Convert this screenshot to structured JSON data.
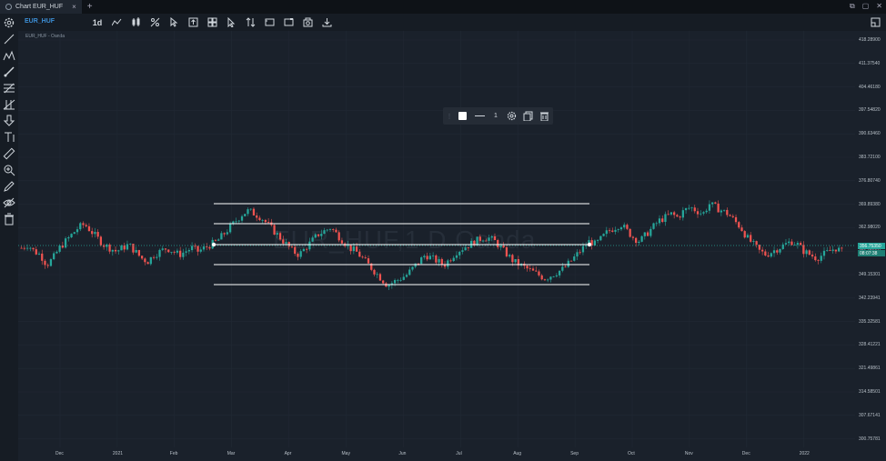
{
  "window": {
    "tab_title": "Chart EUR_HUF",
    "close": "×",
    "new_tab": "+",
    "controls": [
      "⧉",
      "▢",
      "✕"
    ]
  },
  "toolbar": {
    "symbol": "EUR_HUF",
    "interval": "1d"
  },
  "chart": {
    "label": "EUR_HUF - Oanda",
    "watermark": "EUR_HUF,1 D Oanda",
    "line_width": "1"
  },
  "price_badges": {
    "current": "356.75350",
    "countdown": "08:07:38"
  },
  "colors": {
    "up": "#26a69a",
    "down": "#ef5350",
    "background": "#1a212b",
    "accent": "#3d8fd6"
  },
  "chart_data": {
    "type": "candlestick",
    "y_ticks": [
      "418.28900",
      "411.37540",
      "404.46180",
      "397.54820",
      "390.63460",
      "383.72100",
      "376.80740",
      "369.89380",
      "362.98020",
      "356.06660",
      "349.15301",
      "342.23941",
      "335.32581",
      "328.41221",
      "321.49861",
      "314.58501",
      "307.67141",
      "300.75781"
    ],
    "x_ticks": [
      "Dec",
      "2021",
      "Feb",
      "Mar",
      "Apr",
      "May",
      "Jun",
      "Jul",
      "Aug",
      "Sep",
      "Oct",
      "Nov",
      "Dec",
      "2022"
    ],
    "ylim": [
      300.75781,
      418.289
    ],
    "closes": [
      357,
      358,
      356,
      355,
      352,
      354,
      357,
      359,
      361,
      363,
      364,
      362,
      360,
      358,
      357,
      356,
      357,
      358,
      356,
      354,
      353,
      355,
      356,
      357,
      356,
      355,
      356,
      357,
      356,
      357,
      358,
      359,
      361,
      363,
      365,
      367,
      368,
      367,
      366,
      364,
      362,
      360,
      358,
      356,
      355,
      357,
      359,
      361,
      362,
      363,
      361,
      359,
      357,
      356,
      354,
      352,
      350,
      348,
      346,
      347,
      348,
      349,
      351,
      353,
      355,
      354,
      353,
      352,
      354,
      356,
      357,
      358,
      359,
      360,
      360,
      359,
      357,
      355,
      353,
      352,
      351,
      350,
      349,
      348,
      349,
      350,
      351,
      353,
      355,
      357,
      359,
      358,
      360,
      362,
      363,
      364,
      362,
      360,
      359,
      361,
      363,
      365,
      366,
      367,
      366,
      368,
      369,
      368,
      367,
      370,
      369,
      368,
      367,
      365,
      363,
      360,
      358,
      356,
      355,
      356,
      357,
      358,
      359,
      358,
      356,
      355,
      354,
      355,
      356,
      357,
      356
    ]
  }
}
